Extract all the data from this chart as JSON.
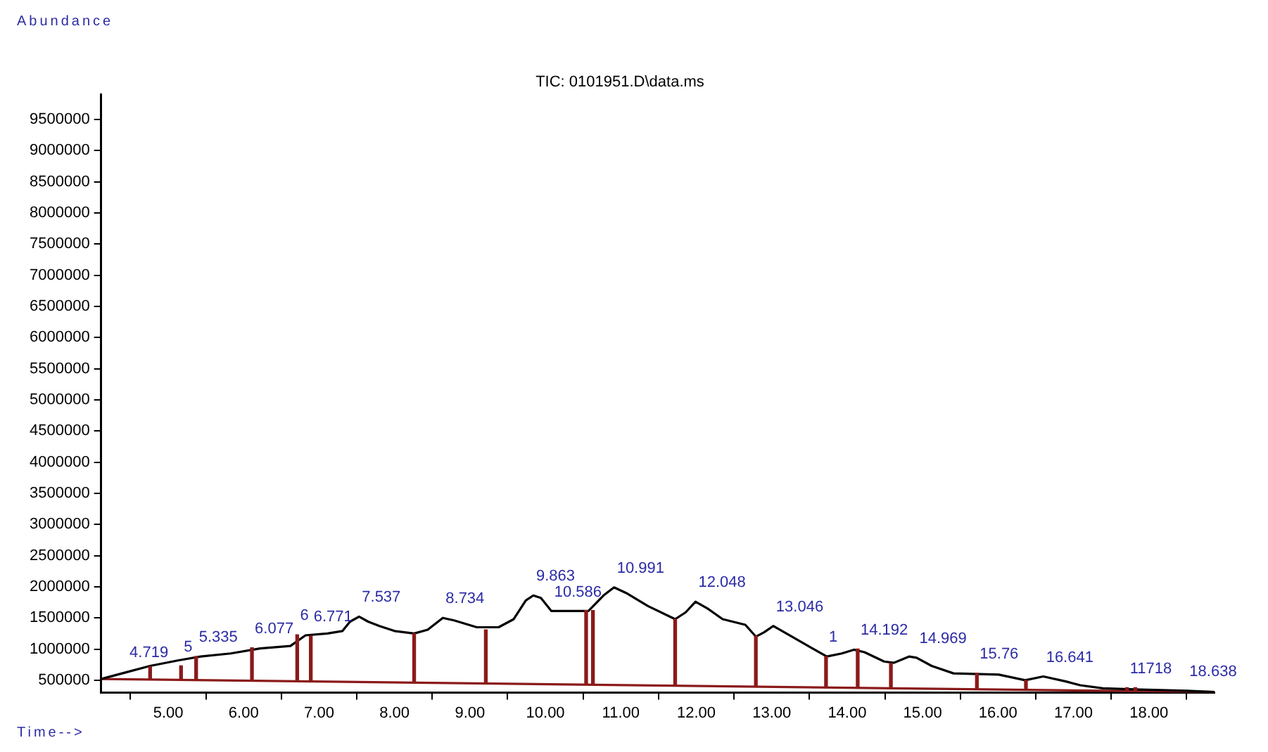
{
  "chart_data": {
    "type": "line",
    "title": "TIC: 0101951.D\\data.ms",
    "xlabel": "Time-->",
    "xlim": [
      4.11,
      18.87
    ],
    "ylim": [
      300000,
      9900000
    ],
    "xticks": [
      {
        "value": 5,
        "label": "5.00"
      },
      {
        "value": 6,
        "label": "6.00"
      },
      {
        "value": 7,
        "label": "7.00"
      },
      {
        "value": 8,
        "label": "8.00"
      },
      {
        "value": 9,
        "label": "9.00"
      },
      {
        "value": 10,
        "label": "10.00"
      },
      {
        "value": 11,
        "label": "11.00"
      },
      {
        "value": 12,
        "label": "12.00"
      },
      {
        "value": 13,
        "label": "13.00"
      },
      {
        "value": 14,
        "label": "14.00"
      },
      {
        "value": 15,
        "label": "15.00"
      },
      {
        "value": 16,
        "label": "16.00"
      },
      {
        "value": 17,
        "label": "17.00"
      },
      {
        "value": 18,
        "label": "18.00"
      }
    ],
    "yticks": [
      500000,
      1000000,
      1500000,
      2000000,
      2500000,
      3000000,
      3500000,
      4000000,
      4500000,
      5000000,
      5500000,
      6000000,
      6500000,
      7000000,
      7500000,
      8000000,
      8500000,
      9000000,
      9500000
    ],
    "grid": false,
    "legend": false,
    "marker": "none",
    "line_style": "solid",
    "series": [
      {
        "color": "#000000",
        "x": [
          4.11,
          4.45,
          4.76,
          5.14,
          5.43,
          5.83,
          6.22,
          6.62,
          6.82,
          7.11,
          7.31,
          7.41,
          7.53,
          7.65,
          7.8,
          8.0,
          8.26,
          8.44,
          8.64,
          8.79,
          9.09,
          9.38,
          9.58,
          9.74,
          9.84,
          9.94,
          10.08,
          10.57,
          10.77,
          10.91,
          11.07,
          11.36,
          11.72,
          11.86,
          11.99,
          12.15,
          12.35,
          12.65,
          12.79,
          12.9,
          13.02,
          13.24,
          13.54,
          13.73,
          13.93,
          14.09,
          14.23,
          14.49,
          14.62,
          14.82,
          14.92,
          15.12,
          15.41,
          16.01,
          16.36,
          16.6,
          16.9,
          17.09,
          17.39,
          17.88,
          18.5,
          18.87
        ],
        "values": [
          520000,
          630000,
          730000,
          820000,
          880000,
          930000,
          1010000,
          1050000,
          1220000,
          1250000,
          1290000,
          1440000,
          1520000,
          1440000,
          1370000,
          1290000,
          1250000,
          1310000,
          1500000,
          1460000,
          1350000,
          1350000,
          1480000,
          1780000,
          1860000,
          1820000,
          1610000,
          1610000,
          1860000,
          1990000,
          1900000,
          1690000,
          1480000,
          1590000,
          1760000,
          1650000,
          1480000,
          1390000,
          1200000,
          1270000,
          1370000,
          1220000,
          1010000,
          880000,
          930000,
          990000,
          950000,
          800000,
          780000,
          880000,
          860000,
          730000,
          610000,
          590000,
          500000,
          560000,
          480000,
          420000,
          370000,
          350000,
          330000,
          310000
        ]
      },
      {
        "color": "#8b1a1a",
        "x": [
          4.11,
          18.87
        ],
        "values": [
          520000,
          310000
        ]
      },
      {
        "type": "bar",
        "color": "#8b1a1a",
        "x": [
          4.76,
          5.17,
          5.37,
          6.11,
          6.71,
          6.89,
          8.26,
          9.21,
          10.54,
          10.63,
          11.72,
          12.79,
          13.72,
          14.14,
          14.58,
          15.72,
          16.37,
          17.71,
          17.82
        ],
        "base": [
          510000,
          500000,
          500000,
          490000,
          480000,
          480000,
          460000,
          450000,
          430000,
          430000,
          410000,
          400000,
          380000,
          380000,
          370000,
          360000,
          350000,
          330000,
          330000
        ],
        "values": [
          210000,
          230000,
          380000,
          530000,
          750000,
          730000,
          790000,
          860000,
          1190000,
          1190000,
          1070000,
          810000,
          500000,
          620000,
          400000,
          250000,
          150000,
          50000,
          50000
        ]
      }
    ],
    "annotations": [
      "Abundance",
      {
        "text": "4.719",
        "x": 4.45,
        "y": 630000
      },
      {
        "text": "5",
        "x": 5.17,
        "y": 730000
      },
      {
        "text": "5.335",
        "x": 5.37,
        "y": 880000
      },
      {
        "text": "6.077",
        "x": 6.11,
        "y": 1020000
      },
      {
        "text": "6",
        "x": 6.71,
        "y": 1230000
      },
      {
        "text": "6.771",
        "x": 6.89,
        "y": 1210000
      },
      {
        "text": "7.537",
        "x": 7.53,
        "y": 1520000
      },
      {
        "text": "8.734",
        "x": 8.64,
        "y": 1500000
      },
      {
        "text": "9.863",
        "x": 9.84,
        "y": 1860000
      },
      {
        "text": "10.586",
        "x": 10.08,
        "y": 1610000
      },
      {
        "text": "10.991",
        "x": 10.91,
        "y": 1990000
      },
      {
        "text": "12.048",
        "x": 11.99,
        "y": 1760000
      },
      {
        "text": "13.046",
        "x": 13.02,
        "y": 1370000
      },
      {
        "text": "1",
        "x": 13.72,
        "y": 880000
      },
      {
        "text": "14.192",
        "x": 14.14,
        "y": 1000000
      },
      {
        "text": "14.969",
        "x": 14.92,
        "y": 860000
      },
      {
        "text": "15.76",
        "x": 15.72,
        "y": 610000
      },
      {
        "text": "16.641",
        "x": 16.6,
        "y": 560000
      },
      {
        "text": "11718",
        "x": 17.71,
        "y": 380000
      },
      {
        "text": "18.638",
        "x": 18.5,
        "y": 330000
      }
    ]
  }
}
